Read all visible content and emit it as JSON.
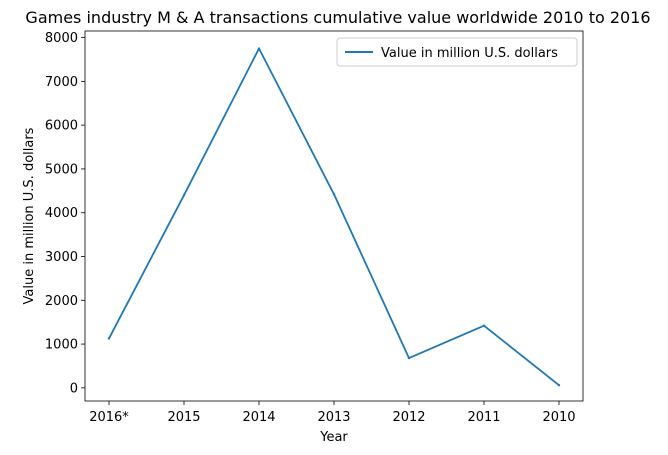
{
  "chart_data": {
    "type": "line",
    "title": "Games industry M & A transactions cumulative value worldwide 2010 to 2016",
    "xlabel": "Year",
    "ylabel": "Value in million U.S. dollars",
    "categories": [
      "2016*",
      "2015",
      "2014",
      "2013",
      "2012",
      "2011",
      "2010"
    ],
    "series": [
      {
        "name": "Value in million U.S. dollars",
        "values": [
          1130,
          4400,
          7750,
          4420,
          680,
          1420,
          60
        ],
        "color": "#1f77b4"
      }
    ],
    "ylim": [
      -300,
      8150
    ],
    "yticks": [
      0,
      1000,
      2000,
      3000,
      4000,
      5000,
      6000,
      7000,
      8000
    ],
    "grid": false,
    "legend_position": "top-right"
  }
}
